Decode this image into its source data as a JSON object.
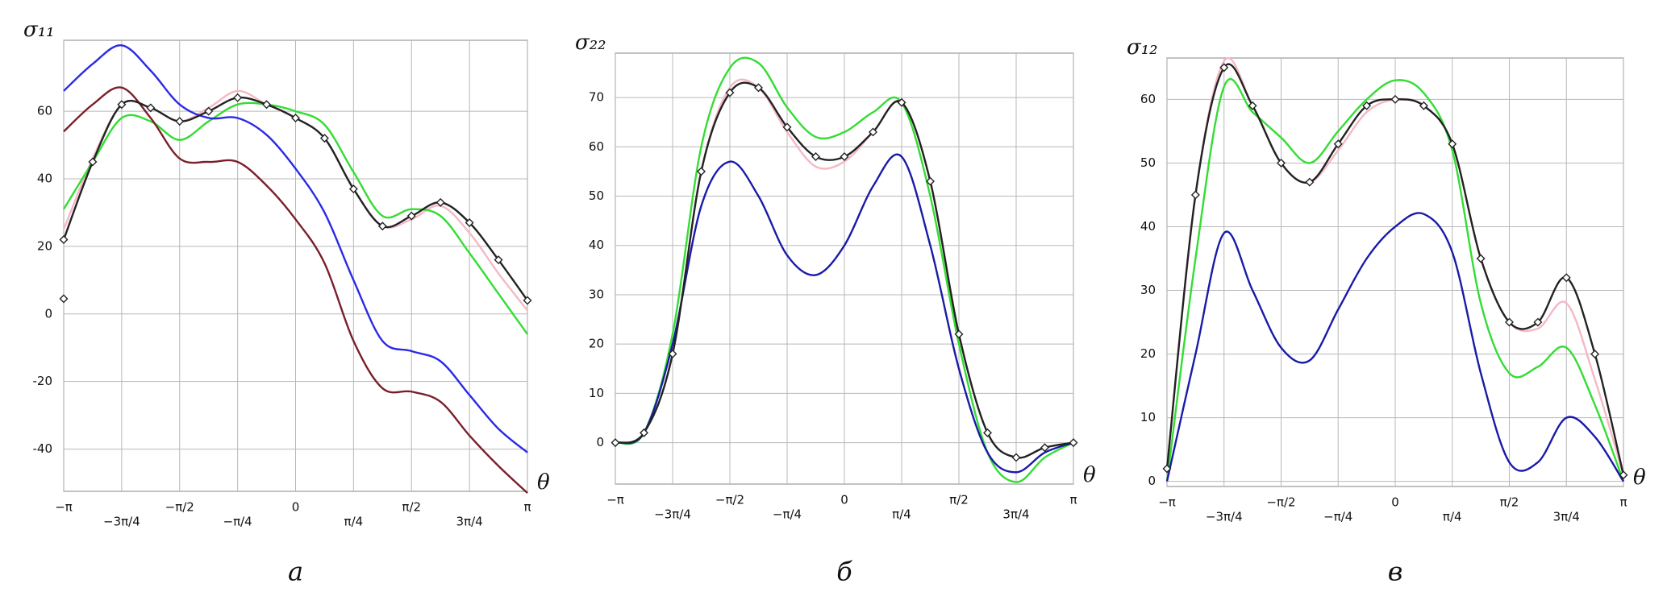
{
  "chart_data": [
    {
      "type": "line",
      "y_label": "σ₁₁",
      "x_label": "θ",
      "caption": "а",
      "x": [
        -3.1416,
        -2.7489,
        -2.3562,
        -1.9635,
        -1.5708,
        -1.1781,
        -0.7854,
        -0.3927,
        0,
        0.3927,
        0.7854,
        1.1781,
        1.5708,
        1.9635,
        2.3562,
        2.7489,
        3.1416
      ],
      "xlim": [
        -3.1416,
        3.1416
      ],
      "xticks": [
        {
          "value": -3.1416,
          "label": "−π"
        },
        {
          "value": -2.3562,
          "label": "−3π/4"
        },
        {
          "value": -1.5708,
          "label": "−π/2"
        },
        {
          "value": -0.7854,
          "label": "−π/4"
        },
        0,
        {
          "value": 0.7854,
          "label": "π/4"
        },
        {
          "value": 1.5708,
          "label": "π/2"
        },
        {
          "value": 2.3562,
          "label": "3π/4"
        },
        {
          "value": 3.1416,
          "label": "π"
        }
      ],
      "ylim": [
        -52.5,
        81
      ],
      "yticks": [
        -40,
        -20,
        0,
        20,
        40,
        60
      ],
      "grid": true,
      "series": [
        {
          "color": "#f5b8c4",
          "values": [
            25,
            46,
            62,
            61,
            57,
            61,
            66,
            62,
            58,
            52,
            37,
            26,
            28,
            32,
            24,
            12,
            1
          ]
        },
        {
          "color": "#33dd33",
          "values": [
            31,
            45,
            58,
            57,
            51.5,
            57,
            62,
            62,
            60,
            56,
            42,
            29,
            31,
            29,
            18,
            6,
            -6
          ]
        },
        {
          "color": "#2a2ae6",
          "values": [
            66,
            74,
            79.5,
            72,
            62,
            58,
            58,
            53,
            43,
            30,
            10,
            -8,
            -11,
            -14,
            -24,
            -34,
            -41
          ]
        },
        {
          "color": "#7a1f2a",
          "values": [
            54,
            62,
            67,
            58,
            46,
            45,
            45,
            38,
            28,
            15,
            -8,
            -22,
            -23,
            -26,
            -36,
            -45,
            -53
          ]
        },
        {
          "color": "#222222",
          "marker": "diamond",
          "values": [
            22,
            45,
            62,
            61,
            57,
            60,
            64,
            62,
            58,
            52,
            37,
            26,
            29,
            33,
            27,
            16,
            4
          ]
        },
        {
          "color": "#222222",
          "marker": "diamond",
          "line": false,
          "values": [
            4.5,
            null,
            null,
            null,
            null,
            null,
            null,
            null,
            null,
            null,
            null,
            null,
            null,
            null,
            null,
            null,
            null
          ]
        }
      ]
    },
    {
      "type": "line",
      "y_label": "σ₂₂",
      "x_label": "θ",
      "caption": "б",
      "x": [
        -3.1416,
        -2.7489,
        -2.3562,
        -1.9635,
        -1.5708,
        -1.1781,
        -0.7854,
        -0.3927,
        0,
        0.3927,
        0.7854,
        1.1781,
        1.5708,
        1.9635,
        2.3562,
        2.7489,
        3.1416
      ],
      "xlim": [
        -3.1416,
        3.1416
      ],
      "xticks": [
        {
          "value": -3.1416,
          "label": "−π"
        },
        {
          "value": -2.3562,
          "label": "−3π/4"
        },
        {
          "value": -1.5708,
          "label": "−π/2"
        },
        {
          "value": -0.7854,
          "label": "−π/4"
        },
        0,
        {
          "value": 0.7854,
          "label": "π/4"
        },
        {
          "value": 1.5708,
          "label": "π/2"
        },
        {
          "value": 2.3562,
          "label": "3π/4"
        },
        {
          "value": 3.1416,
          "label": "π"
        }
      ],
      "ylim": [
        -8.4,
        79
      ],
      "yticks": [
        0,
        10,
        20,
        30,
        40,
        50,
        60,
        70
      ],
      "grid": true,
      "series": [
        {
          "color": "#f5b8c4",
          "values": [
            0,
            2,
            18,
            55,
            72,
            72,
            63,
            56,
            57,
            63,
            69,
            53,
            22,
            2,
            -3,
            -1,
            0
          ]
        },
        {
          "color": "#33dd33",
          "values": [
            0,
            2,
            22,
            60,
            76,
            77,
            68,
            62,
            63,
            67,
            69,
            50,
            20,
            -2,
            -8,
            -3,
            0
          ]
        },
        {
          "color": "#1a1aa8",
          "values": [
            0,
            2,
            20,
            48,
            57,
            50,
            38,
            34,
            40,
            52,
            58,
            40,
            15,
            -2,
            -6,
            -2,
            0
          ]
        },
        {
          "color": "#222222",
          "marker": "diamond",
          "values": [
            0,
            2,
            18,
            55,
            71,
            72,
            64,
            58,
            58,
            63,
            69,
            53,
            22,
            2,
            -3,
            -1,
            0
          ]
        }
      ]
    },
    {
      "type": "line",
      "y_label": "σ₁₂",
      "x_label": "θ",
      "caption": "в",
      "x": [
        -3.1416,
        -2.7489,
        -2.3562,
        -1.9635,
        -1.5708,
        -1.1781,
        -0.7854,
        -0.3927,
        0,
        0.3927,
        0.7854,
        1.1781,
        1.5708,
        1.9635,
        2.3562,
        2.7489,
        3.1416
      ],
      "xlim": [
        -3.1416,
        3.1416
      ],
      "xticks": [
        {
          "value": -3.1416,
          "label": "−π"
        },
        {
          "value": -2.3562,
          "label": "−3π/4"
        },
        {
          "value": -1.5708,
          "label": "−π/2"
        },
        {
          "value": -0.7854,
          "label": "−π/4"
        },
        0,
        {
          "value": 0.7854,
          "label": "π/4"
        },
        {
          "value": 1.5708,
          "label": "π/2"
        },
        {
          "value": 2.3562,
          "label": "3π/4"
        },
        {
          "value": 3.1416,
          "label": "π"
        }
      ],
      "ylim": [
        -0.8,
        66.5
      ],
      "yticks": [
        0,
        10,
        20,
        30,
        40,
        50,
        60
      ],
      "grid": true,
      "series": [
        {
          "color": "#f5b8c4",
          "values": [
            2,
            45,
            66,
            59,
            50,
            47,
            52,
            58,
            60,
            59,
            53,
            35,
            25,
            24,
            28,
            16,
            1
          ]
        },
        {
          "color": "#33dd33",
          "values": [
            0,
            35,
            62,
            58,
            54,
            50,
            55,
            60,
            63,
            61,
            52,
            28,
            17,
            18,
            21,
            12,
            0
          ]
        },
        {
          "color": "#1a1aa8",
          "values": [
            0,
            20,
            39,
            30,
            21,
            19,
            27,
            35,
            40,
            42,
            36,
            17,
            3,
            3,
            10,
            7,
            0
          ]
        },
        {
          "color": "#222222",
          "marker": "diamond",
          "values": [
            2,
            45,
            65,
            59,
            50,
            47,
            53,
            59,
            60,
            59,
            53,
            35,
            25,
            25,
            32,
            20,
            1
          ]
        }
      ]
    }
  ]
}
